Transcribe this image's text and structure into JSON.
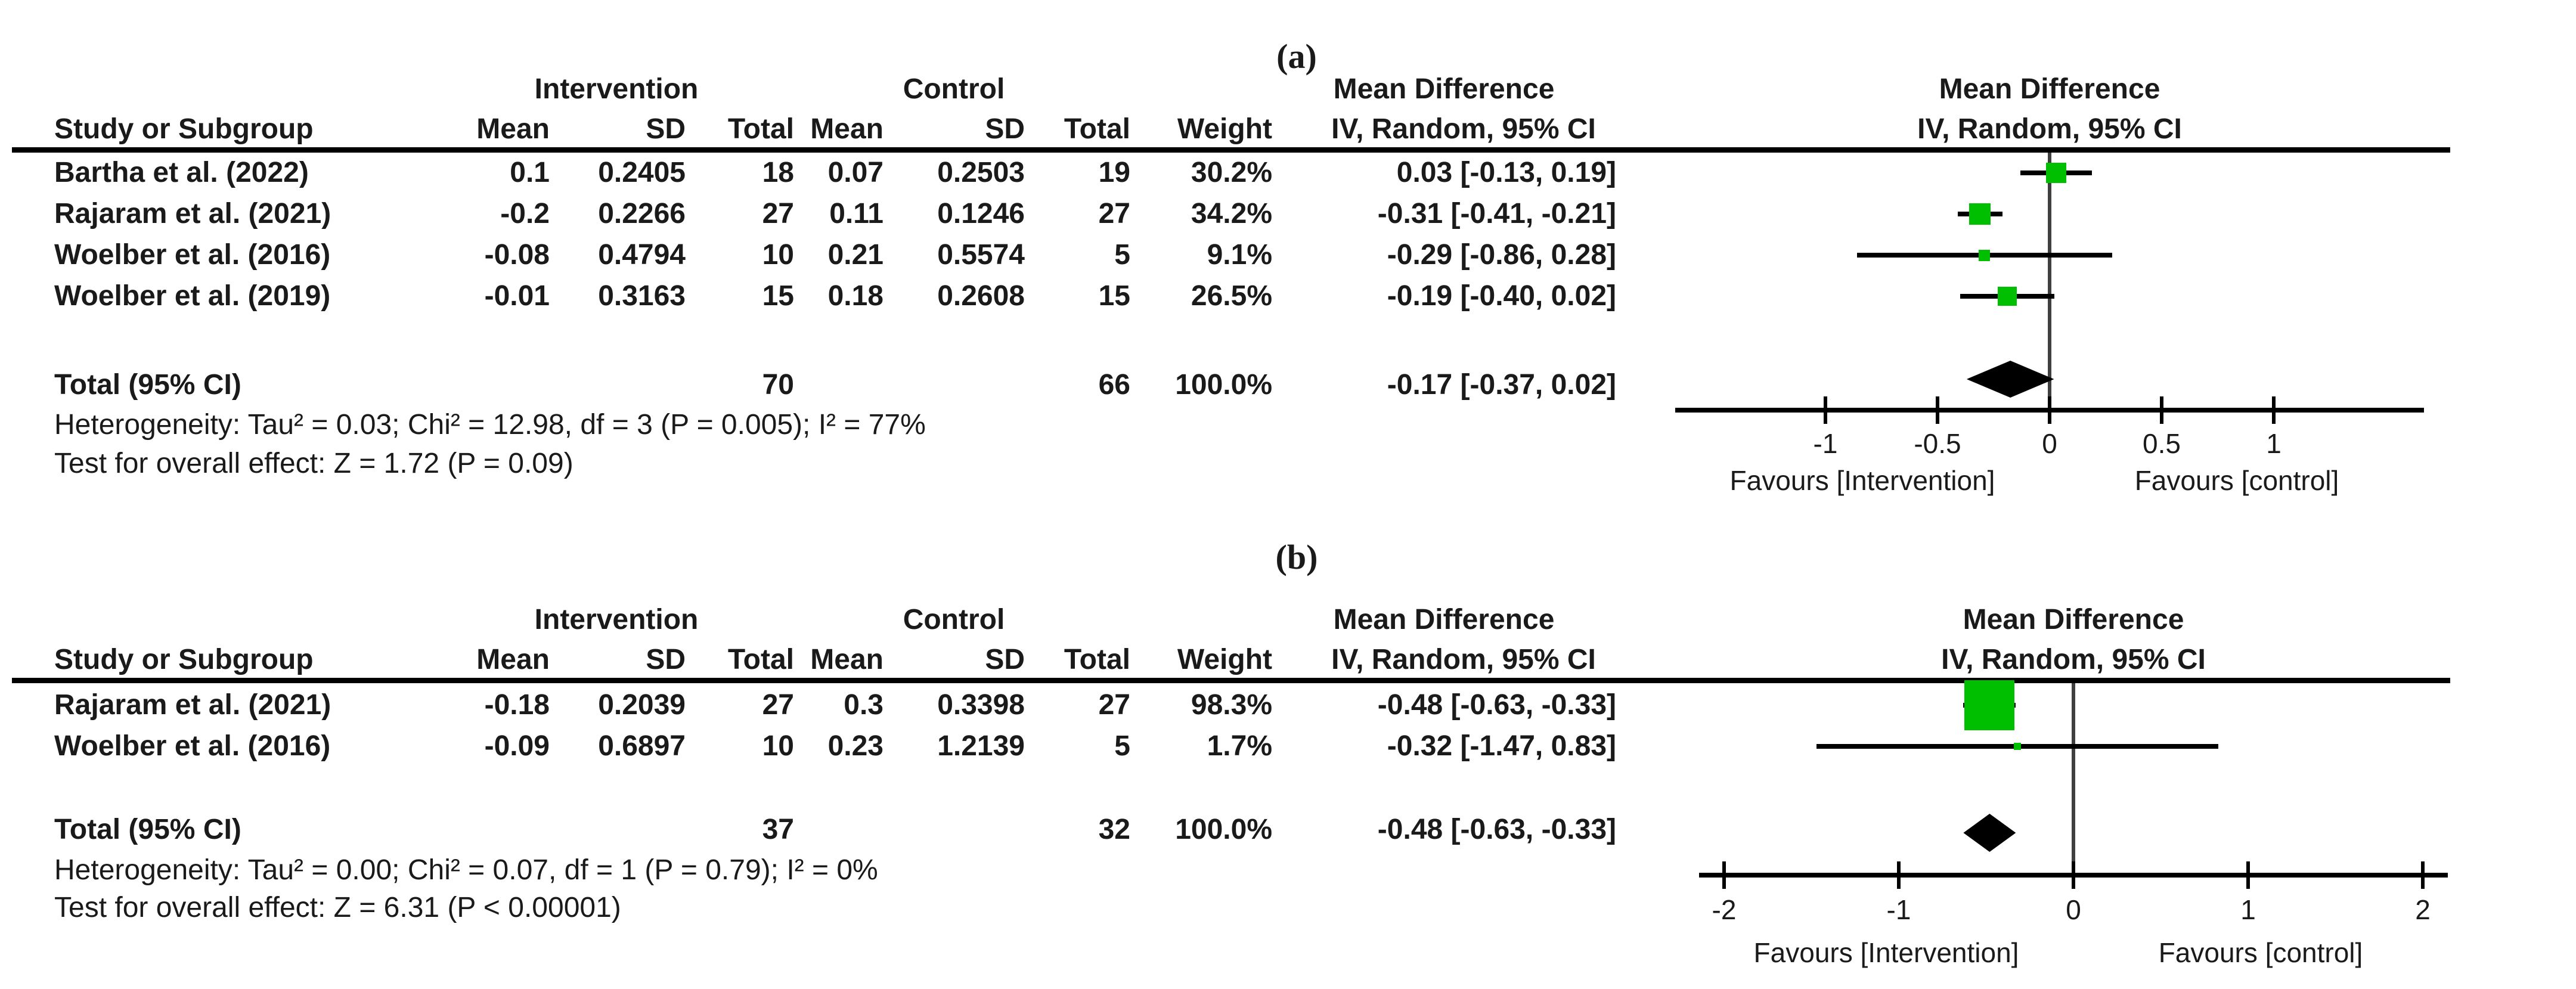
{
  "figure": {
    "square_color": "#00bf00",
    "line_color": "#000000",
    "zero_line_color": "#404040",
    "text_color": "#1a1a1a"
  },
  "panels": [
    {
      "id": "a",
      "label": "(a)",
      "headers": {
        "group_intervention": "Intervention",
        "group_control": "Control",
        "md_table": "Mean Difference",
        "md_plot": "Mean Difference",
        "study": "Study or Subgroup",
        "mean_i": "Mean",
        "sd_i": "SD",
        "total_i": "Total",
        "mean_c": "Mean",
        "sd_c": "SD",
        "total_c": "Total",
        "weight": "Weight",
        "iv_table": "IV, Random, 95% CI",
        "iv_plot": "IV, Random, 95% CI"
      },
      "rows": [
        {
          "study": "Bartha et al. (2022)",
          "i_mean": "0.1",
          "i_sd": "0.2405",
          "i_total": "18",
          "c_mean": "0.07",
          "c_sd": "0.2503",
          "c_total": "19",
          "weight": "30.2%",
          "ci_text": "0.03 [-0.13, 0.19]",
          "md": 0.03,
          "lo": -0.13,
          "hi": 0.19,
          "w": 30.2
        },
        {
          "study": "Rajaram et al. (2021)",
          "i_mean": "-0.2",
          "i_sd": "0.2266",
          "i_total": "27",
          "c_mean": "0.11",
          "c_sd": "0.1246",
          "c_total": "27",
          "weight": "34.2%",
          "ci_text": "-0.31 [-0.41, -0.21]",
          "md": -0.31,
          "lo": -0.41,
          "hi": -0.21,
          "w": 34.2
        },
        {
          "study": "Woelber et al. (2016)",
          "i_mean": "-0.08",
          "i_sd": "0.4794",
          "i_total": "10",
          "c_mean": "0.21",
          "c_sd": "0.5574",
          "c_total": "5",
          "weight": "9.1%",
          "ci_text": "-0.29 [-0.86, 0.28]",
          "md": -0.29,
          "lo": -0.86,
          "hi": 0.28,
          "w": 9.1
        },
        {
          "study": "Woelber et al. (2019)",
          "i_mean": "-0.01",
          "i_sd": "0.3163",
          "i_total": "15",
          "c_mean": "0.18",
          "c_sd": "0.2608",
          "c_total": "15",
          "weight": "26.5%",
          "ci_text": "-0.19 [-0.40, 0.02]",
          "md": -0.19,
          "lo": -0.4,
          "hi": 0.02,
          "w": 26.5
        }
      ],
      "total": {
        "label": "Total (95% CI)",
        "i_total": "70",
        "c_total": "66",
        "weight": "100.0%",
        "ci_text": "-0.17 [-0.37, 0.02]",
        "md": -0.17,
        "lo": -0.37,
        "hi": 0.02
      },
      "heterogeneity": "Heterogeneity: Tau² = 0.03; Chi² = 12.98, df = 3 (P = 0.005); I² = 77%",
      "overall_effect": "Test for overall effect: Z = 1.72 (P = 0.09)",
      "axis": {
        "tick_values": [
          -1,
          -0.5,
          0,
          0.5,
          1
        ],
        "tick_labels": [
          "-1",
          "-0.5",
          "0",
          "0.5",
          "1"
        ],
        "favours_left": "Favours [Intervention]",
        "favours_right": "Favours [control]"
      }
    },
    {
      "id": "b",
      "label": "(b)",
      "headers": {
        "group_intervention": "Intervention",
        "group_control": "Control",
        "md_table": "Mean Difference",
        "md_plot": "Mean Difference",
        "study": "Study or Subgroup",
        "mean_i": "Mean",
        "sd_i": "SD",
        "total_i": "Total",
        "mean_c": "Mean",
        "sd_c": "SD",
        "total_c": "Total",
        "weight": "Weight",
        "iv_table": "IV, Random, 95% CI",
        "iv_plot": "IV, Random, 95% CI"
      },
      "rows": [
        {
          "study": "Rajaram et al. (2021)",
          "i_mean": "-0.18",
          "i_sd": "0.2039",
          "i_total": "27",
          "c_mean": "0.3",
          "c_sd": "0.3398",
          "c_total": "27",
          "weight": "98.3%",
          "ci_text": "-0.48 [-0.63, -0.33]",
          "md": -0.48,
          "lo": -0.63,
          "hi": -0.33,
          "w": 98.3
        },
        {
          "study": "Woelber et al. (2016)",
          "i_mean": "-0.09",
          "i_sd": "0.6897",
          "i_total": "10",
          "c_mean": "0.23",
          "c_sd": "1.2139",
          "c_total": "5",
          "weight": "1.7%",
          "ci_text": "-0.32 [-1.47, 0.83]",
          "md": -0.32,
          "lo": -1.47,
          "hi": 0.83,
          "w": 1.7
        }
      ],
      "total": {
        "label": "Total (95% CI)",
        "i_total": "37",
        "c_total": "32",
        "weight": "100.0%",
        "ci_text": "-0.48 [-0.63, -0.33]",
        "md": -0.48,
        "lo": -0.63,
        "hi": -0.33
      },
      "heterogeneity": "Heterogeneity: Tau² = 0.00; Chi² = 0.07, df = 1 (P = 0.79); I² = 0%",
      "overall_effect": "Test for overall effect: Z = 6.31 (P < 0.00001)",
      "axis": {
        "tick_values": [
          -2,
          -1,
          0,
          1,
          2
        ],
        "tick_labels": [
          "-2",
          "-1",
          "0",
          "1",
          "2"
        ],
        "favours_left": "Favours [Intervention]",
        "favours_right": "Favours [control]"
      }
    }
  ],
  "chart_data": [
    {
      "type": "scatter",
      "subtype": "forest_plot",
      "title": "(a)",
      "effect_measure": "Mean Difference, IV, Random, 95% CI",
      "studies": [
        {
          "name": "Bartha et al. (2022)",
          "intervention": {
            "mean": 0.1,
            "sd": 0.2405,
            "n": 18
          },
          "control": {
            "mean": 0.07,
            "sd": 0.2503,
            "n": 19
          },
          "weight_pct": 30.2,
          "md": 0.03,
          "ci": [
            -0.13,
            0.19
          ]
        },
        {
          "name": "Rajaram et al. (2021)",
          "intervention": {
            "mean": -0.2,
            "sd": 0.2266,
            "n": 27
          },
          "control": {
            "mean": 0.11,
            "sd": 0.1246,
            "n": 27
          },
          "weight_pct": 34.2,
          "md": -0.31,
          "ci": [
            -0.41,
            -0.21
          ]
        },
        {
          "name": "Woelber et al. (2016)",
          "intervention": {
            "mean": -0.08,
            "sd": 0.4794,
            "n": 10
          },
          "control": {
            "mean": 0.21,
            "sd": 0.5574,
            "n": 5
          },
          "weight_pct": 9.1,
          "md": -0.29,
          "ci": [
            -0.86,
            0.28
          ]
        },
        {
          "name": "Woelber et al. (2019)",
          "intervention": {
            "mean": -0.01,
            "sd": 0.3163,
            "n": 15
          },
          "control": {
            "mean": 0.18,
            "sd": 0.2608,
            "n": 15
          },
          "weight_pct": 26.5,
          "md": -0.19,
          "ci": [
            -0.4,
            0.02
          ]
        }
      ],
      "pooled": {
        "n_intervention": 70,
        "n_control": 66,
        "weight_pct": 100.0,
        "md": -0.17,
        "ci": [
          -0.37,
          0.02
        ]
      },
      "heterogeneity": {
        "tau2": 0.03,
        "chi2": 12.98,
        "df": 3,
        "p": 0.005,
        "i2_pct": 77
      },
      "overall_effect": {
        "z": 1.72,
        "p": 0.09
      },
      "xlim": [
        -1.67,
        1.67
      ],
      "x_ticks": [
        -1,
        -0.5,
        0,
        0.5,
        1
      ],
      "x_left_label": "Favours [Intervention]",
      "x_right_label": "Favours [control]"
    },
    {
      "type": "scatter",
      "subtype": "forest_plot",
      "title": "(b)",
      "effect_measure": "Mean Difference, IV, Random, 95% CI",
      "studies": [
        {
          "name": "Rajaram et al. (2021)",
          "intervention": {
            "mean": -0.18,
            "sd": 0.2039,
            "n": 27
          },
          "control": {
            "mean": 0.3,
            "sd": 0.3398,
            "n": 27
          },
          "weight_pct": 98.3,
          "md": -0.48,
          "ci": [
            -0.63,
            -0.33
          ]
        },
        {
          "name": "Woelber et al. (2016)",
          "intervention": {
            "mean": -0.09,
            "sd": 0.6897,
            "n": 10
          },
          "control": {
            "mean": 0.23,
            "sd": 1.2139,
            "n": 5
          },
          "weight_pct": 1.7,
          "md": -0.32,
          "ci": [
            -1.47,
            0.83
          ]
        }
      ],
      "pooled": {
        "n_intervention": 37,
        "n_control": 32,
        "weight_pct": 100.0,
        "md": -0.48,
        "ci": [
          -0.63,
          -0.33
        ]
      },
      "heterogeneity": {
        "tau2": 0.0,
        "chi2": 0.07,
        "df": 1,
        "p": 0.79,
        "i2_pct": 0
      },
      "overall_effect": {
        "z": 6.31,
        "p": 1e-05,
        "p_operator": "<"
      },
      "xlim": [
        -2.14,
        2.14
      ],
      "x_ticks": [
        -2,
        -1,
        0,
        1,
        2
      ],
      "x_left_label": "Favours [Intervention]",
      "x_right_label": "Favours [control]"
    }
  ]
}
